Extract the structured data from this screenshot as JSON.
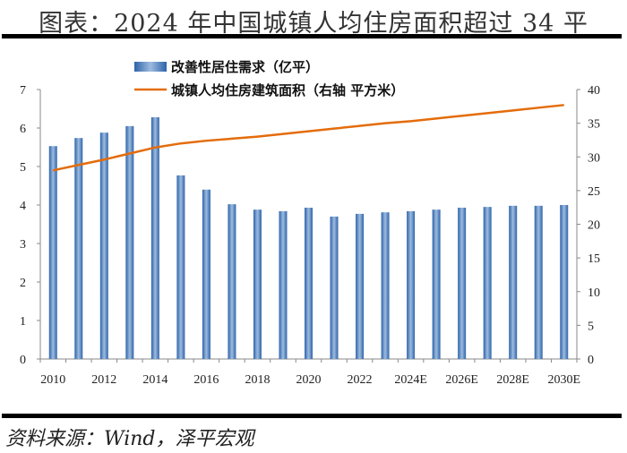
{
  "title": "图表：2024 年中国城镇人均住房面积超过 34 平",
  "source": "资料来源：Wind，泽平宏观",
  "chart_data": {
    "type": "bar+line",
    "x": [
      2010,
      2011,
      2012,
      2013,
      2014,
      2015,
      2016,
      2017,
      2018,
      2019,
      2020,
      2021,
      2022,
      2023,
      2024,
      2025,
      2026,
      2027,
      2028,
      2029,
      2030
    ],
    "x_tick_labels": [
      "2010",
      "2012",
      "2014",
      "2016",
      "2018",
      "2020",
      "2022",
      "2024E",
      "2026E",
      "2028E",
      "2030E"
    ],
    "series": [
      {
        "name": "改善性居住需求（亿平）",
        "type": "bar",
        "axis": "left",
        "color": "#4f81bd",
        "values": [
          5.53,
          5.74,
          5.88,
          6.05,
          6.28,
          4.77,
          4.4,
          4.02,
          3.88,
          3.84,
          3.93,
          3.7,
          3.77,
          3.81,
          3.84,
          3.88,
          3.93,
          3.95,
          3.98,
          3.98,
          4.0
        ]
      },
      {
        "name": "城镇人均住房建筑面积（右轴 平方米）",
        "type": "line",
        "axis": "right",
        "color": "#e46c0a",
        "values": [
          28.0,
          28.8,
          29.6,
          30.5,
          31.4,
          32.0,
          32.4,
          32.7,
          33.0,
          33.4,
          33.8,
          34.2,
          34.6,
          35.0,
          35.3,
          35.7,
          36.1,
          36.5,
          36.9,
          37.3,
          37.7
        ]
      }
    ],
    "ylim_left": [
      0,
      7
    ],
    "yticks_left": [
      "0",
      "1",
      "2",
      "3",
      "4",
      "5",
      "6",
      "7"
    ],
    "ylim_right": [
      0,
      40
    ],
    "yticks_right": [
      "0",
      "5",
      "10",
      "15",
      "20",
      "25",
      "30",
      "35",
      "40"
    ],
    "grid": false,
    "legend": "top-center"
  }
}
